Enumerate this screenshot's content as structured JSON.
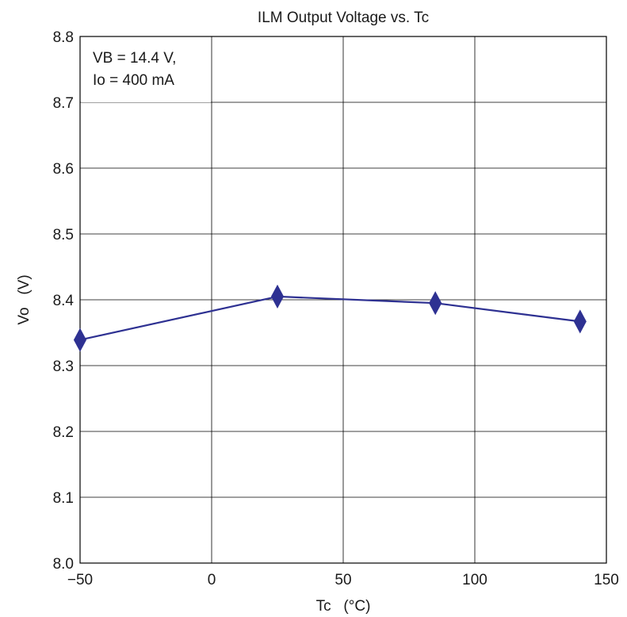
{
  "chart_data": {
    "type": "line",
    "title": "ILM Output Voltage vs. Tc",
    "xlabel": "Tc   (°C)",
    "ylabel": "Vo   (V)",
    "xlim": [
      -50,
      150
    ],
    "ylim": [
      8.0,
      8.8
    ],
    "x_ticks": [
      -50,
      0,
      50,
      100,
      150
    ],
    "x_tick_labels": [
      "−50",
      "0",
      "50",
      "100",
      "150"
    ],
    "y_ticks": [
      8.0,
      8.1,
      8.2,
      8.3,
      8.4,
      8.5,
      8.6,
      8.7,
      8.8
    ],
    "y_tick_labels": [
      "8.0",
      "8.1",
      "8.2",
      "8.3",
      "8.4",
      "8.5",
      "8.6",
      "8.7",
      "8.8"
    ],
    "grid": true,
    "legend": "none",
    "annotations": [
      "VB = 14.4 V,",
      "Io = 400 mA"
    ],
    "series": [
      {
        "color": "#2e3192",
        "marker": "diamond",
        "x": [
          -50,
          25,
          85,
          140
        ],
        "y": [
          8.339,
          8.405,
          8.395,
          8.367
        ]
      }
    ]
  }
}
